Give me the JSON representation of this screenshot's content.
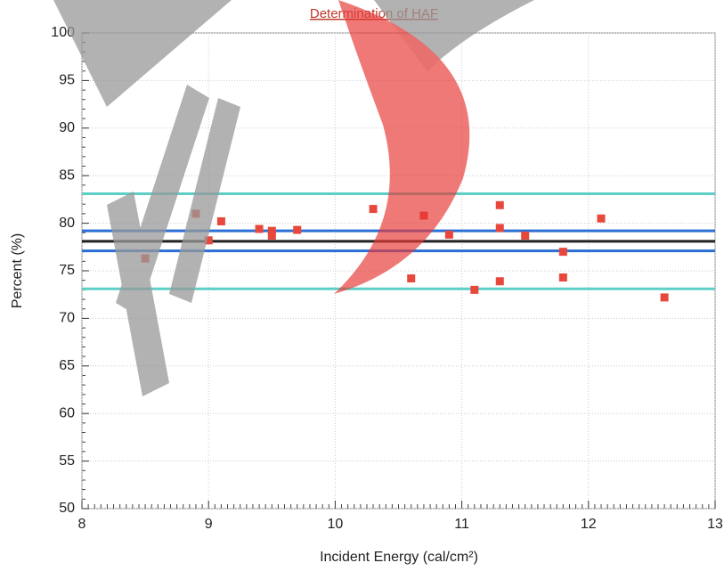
{
  "chart_data": {
    "type": "scatter",
    "title": "Determination of HAF",
    "x_label": "Incident Energy (cal/cm²)",
    "y_label": "Percent (%)",
    "xlim": [
      8,
      13
    ],
    "ylim": [
      50,
      100
    ],
    "xticks": [
      8,
      9,
      10,
      11,
      12,
      13
    ],
    "yticks": [
      50,
      55,
      60,
      65,
      70,
      75,
      80,
      85,
      90,
      95,
      100
    ],
    "grid": true,
    "series": [
      {
        "color": "#e8473c",
        "x": [
          8.5,
          8.9,
          9.0,
          9.1,
          9.4,
          9.5,
          9.5,
          9.7,
          10.3,
          10.6,
          10.7,
          10.9,
          11.1,
          11.3,
          11.3,
          11.3,
          11.5,
          11.8,
          11.8,
          12.1,
          12.6
        ],
        "values": [
          76.3,
          81.0,
          78.2,
          80.2,
          79.4,
          79.2,
          78.7,
          79.3,
          81.5,
          74.2,
          80.8,
          78.8,
          73.0,
          81.9,
          79.5,
          73.9,
          78.7,
          77.0,
          74.3,
          80.5,
          72.2
        ]
      }
    ],
    "reference_lines": [
      {
        "color": "#5ecfc6",
        "value": 83.1
      },
      {
        "color": "#2a6fd6",
        "value": 79.2
      },
      {
        "color": "#222222",
        "value": 78.1
      },
      {
        "color": "#2a6fd6",
        "value": 77.1
      },
      {
        "color": "#5ecfc6",
        "value": 73.1
      }
    ]
  }
}
